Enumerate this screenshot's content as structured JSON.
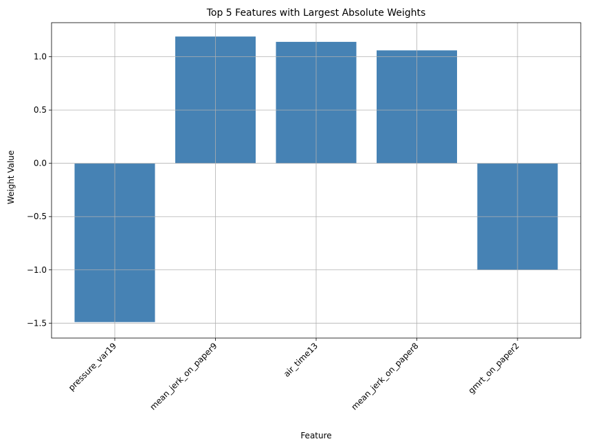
{
  "chart_data": {
    "type": "bar",
    "title": "Top 5 Features with Largest Absolute Weights",
    "xlabel": "Feature",
    "ylabel": "Weight Value",
    "categories": [
      "pressure_var19",
      "mean_jerk_on_paper9",
      "air_time13",
      "mean_jerk_on_paper8",
      "gmrt_on_paper2"
    ],
    "values": [
      -1.49,
      1.19,
      1.14,
      1.06,
      -1.0
    ],
    "ylim": [
      -1.64,
      1.32
    ],
    "yticks": [
      -1.5,
      -1.0,
      -0.5,
      0.0,
      0.5,
      1.0
    ],
    "ytick_labels": [
      "−1.5",
      "−1.0",
      "−0.5",
      "0.0",
      "0.5",
      "1.0"
    ],
    "grid": true,
    "bar_color": "#4682b4"
  }
}
